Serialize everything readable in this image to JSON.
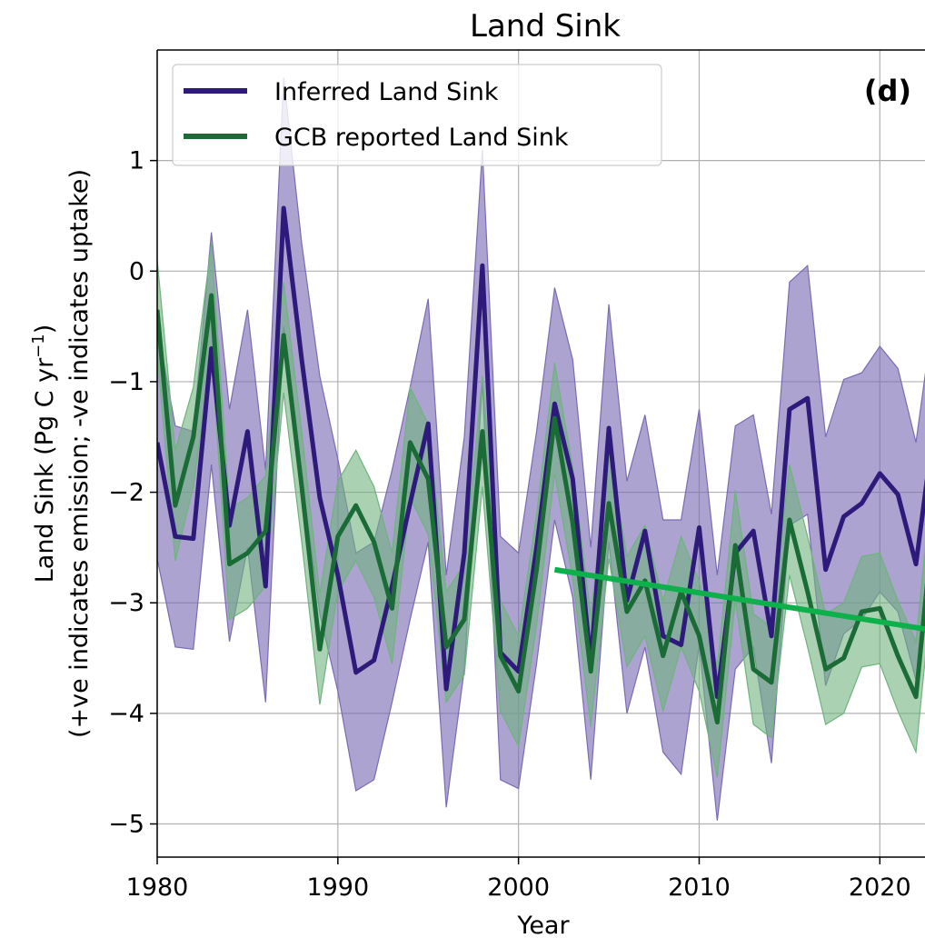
{
  "chart_data": {
    "type": "line",
    "title": "Land Sink",
    "panel_label": "(d)",
    "xlabel": "Year",
    "ylabel_line1": "Land Sink (Pg C yr",
    "ylabel_sup": "−1",
    "ylabel_close": ")",
    "ylabel_line2": "(+ve indicates emission; -ve indicates uptake)",
    "xlim": [
      1980,
      2022.5
    ],
    "ylim": [
      -5.3,
      2.0
    ],
    "xticks": [
      1980,
      1990,
      2000,
      2010,
      2020
    ],
    "xtick_labels": [
      "1980",
      "1990",
      "2000",
      "2010",
      "2020"
    ],
    "yticks": [
      1,
      0,
      -1,
      -2,
      -3,
      -4,
      -5
    ],
    "ytick_labels": [
      "1",
      "0",
      "−1",
      "−2",
      "−3",
      "−4",
      "−5"
    ],
    "grid": true,
    "legend_position": "upper-left",
    "x": [
      1980,
      1981,
      1982,
      1983,
      1984,
      1985,
      1986,
      1987,
      1988,
      1989,
      1990,
      1991,
      1992,
      1993,
      1994,
      1995,
      1996,
      1997,
      1998,
      1999,
      2000,
      2001,
      2002,
      2003,
      2004,
      2005,
      2006,
      2007,
      2008,
      2009,
      2010,
      2011,
      2012,
      2013,
      2014,
      2015,
      2016,
      2017,
      2018,
      2019,
      2020,
      2021,
      2022,
      2023
    ],
    "series": [
      {
        "name": "Inferred Land Sink",
        "color": "#2e1a7a",
        "band_color": "#7b6bb4",
        "values": [
          -1.55,
          -2.4,
          -2.42,
          -0.7,
          -2.3,
          -1.45,
          -2.85,
          0.57,
          -0.8,
          -2.05,
          -2.75,
          -3.63,
          -3.52,
          -2.85,
          -2.1,
          -1.38,
          -3.78,
          -2.55,
          0.05,
          -3.45,
          -3.62,
          -2.5,
          -1.2,
          -1.88,
          -3.55,
          -1.42,
          -2.98,
          -2.35,
          -3.3,
          -3.38,
          -2.32,
          -3.85,
          -2.55,
          -2.35,
          -3.3,
          -1.25,
          -1.15,
          -2.7,
          -2.22,
          -2.1,
          -1.83,
          -2.02,
          -2.65,
          -1.4
        ],
        "lower": [
          -2.6,
          -3.4,
          -3.42,
          -1.75,
          -3.35,
          -2.5,
          -3.9,
          -0.5,
          -1.85,
          -3.1,
          -3.8,
          -4.7,
          -4.6,
          -3.9,
          -3.15,
          -2.45,
          -4.85,
          -3.6,
          -1.0,
          -4.6,
          -4.68,
          -3.55,
          -2.25,
          -2.95,
          -4.6,
          -2.45,
          -4.0,
          -3.4,
          -4.35,
          -4.55,
          -3.38,
          -4.97,
          -3.6,
          -3.4,
          -4.45,
          -2.3,
          -2.2,
          -3.75,
          -3.28,
          -3.15,
          -2.9,
          -3.08,
          -3.7,
          -2.45
        ],
        "upper": [
          -0.5,
          -1.4,
          -1.45,
          0.35,
          -1.25,
          -0.35,
          -1.8,
          1.75,
          0.25,
          -0.95,
          -1.7,
          -2.55,
          -2.45,
          -1.8,
          -1.05,
          -0.25,
          -2.75,
          -1.5,
          1.1,
          -2.4,
          -2.55,
          -1.45,
          -0.15,
          -0.8,
          -2.5,
          -0.3,
          -1.9,
          -1.3,
          -2.25,
          -2.25,
          -1.25,
          -2.75,
          -1.4,
          -1.3,
          -2.2,
          -0.1,
          0.05,
          -1.5,
          -0.98,
          -0.92,
          -0.68,
          -0.88,
          -1.55,
          -0.35
        ]
      },
      {
        "name": "GCB reported Land Sink",
        "color": "#1a6b35",
        "band_color": "#6fb37e",
        "values": [
          -0.35,
          -2.12,
          -1.5,
          -0.22,
          -2.65,
          -2.55,
          -2.35,
          -0.58,
          -1.95,
          -3.42,
          -2.4,
          -2.12,
          -2.45,
          -3.05,
          -1.55,
          -1.88,
          -3.4,
          -3.15,
          -1.45,
          -3.48,
          -3.8,
          -2.7,
          -1.33,
          -2.28,
          -3.62,
          -2.1,
          -3.08,
          -2.8,
          -3.48,
          -2.9,
          -3.3,
          -4.08,
          -2.48,
          -3.6,
          -3.72,
          -2.25,
          -2.9,
          -3.6,
          -3.5,
          -3.08,
          -3.05,
          -3.48,
          -3.85,
          -2.2
        ],
        "lower": [
          -0.75,
          -2.62,
          -1.95,
          -0.72,
          -3.15,
          -3.05,
          -2.85,
          -1.1,
          -2.45,
          -3.92,
          -2.9,
          -2.62,
          -2.95,
          -3.55,
          -2.05,
          -2.38,
          -3.9,
          -3.65,
          -1.95,
          -3.98,
          -4.3,
          -3.2,
          -1.83,
          -2.78,
          -4.12,
          -2.6,
          -3.58,
          -3.3,
          -3.98,
          -3.4,
          -3.8,
          -4.58,
          -2.98,
          -4.1,
          -4.22,
          -2.75,
          -3.4,
          -4.1,
          -4.0,
          -3.58,
          -3.55,
          -3.98,
          -4.35,
          -2.7
        ],
        "upper": [
          0.1,
          -1.62,
          -1.05,
          0.25,
          -2.15,
          -2.05,
          -1.85,
          -0.1,
          -1.45,
          -2.92,
          -1.9,
          -1.62,
          -1.95,
          -2.55,
          -1.05,
          -1.38,
          -2.9,
          -2.65,
          -0.95,
          -2.98,
          -3.3,
          -2.2,
          -0.83,
          -1.78,
          -3.12,
          -1.6,
          -2.58,
          -2.3,
          -2.98,
          -2.4,
          -2.8,
          -3.58,
          -1.98,
          -3.1,
          -3.22,
          -1.75,
          -2.4,
          -3.1,
          -3.0,
          -2.58,
          -2.55,
          -2.98,
          -3.35,
          -1.7
        ]
      }
    ],
    "trend_line": {
      "color": "#0db04b",
      "x": [
        2002,
        2023
      ],
      "y": [
        -2.7,
        -3.25
      ]
    }
  }
}
